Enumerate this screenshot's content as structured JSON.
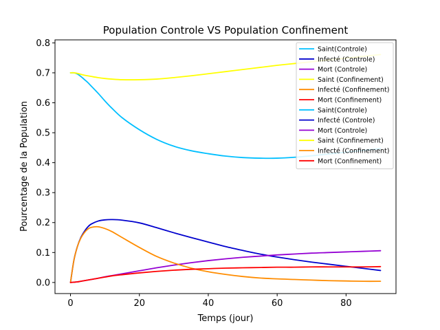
{
  "chart_data": {
    "type": "line",
    "title": "Population Controle VS Population Confinement",
    "xlabel": "Temps (jour)",
    "ylabel": "Pourcentage de la Population",
    "xlim": [
      -4.5,
      94.5
    ],
    "ylim": [
      -0.037,
      0.81
    ],
    "xticks": [
      0,
      20,
      40,
      60,
      80
    ],
    "yticks": [
      0.0,
      0.1,
      0.2,
      0.3,
      0.4,
      0.5,
      0.6,
      0.7,
      0.8
    ],
    "xtick_labels": [
      "0",
      "20",
      "40",
      "60",
      "80"
    ],
    "ytick_labels": [
      "0.0",
      "0.1",
      "0.2",
      "0.3",
      "0.4",
      "0.5",
      "0.6",
      "0.7",
      "0.8"
    ],
    "grid": false,
    "legend_position": "top-right",
    "x": [
      0,
      1,
      2,
      3,
      4,
      5,
      6,
      8,
      10,
      12,
      15,
      20,
      25,
      30,
      35,
      40,
      45,
      50,
      55,
      60,
      65,
      70,
      75,
      80,
      85,
      90
    ],
    "series": [
      {
        "name": "Saint(Controle)",
        "color": "#00bfff",
        "values": [
          0.7,
          0.7,
          0.696,
          0.688,
          0.678,
          0.668,
          0.656,
          0.632,
          0.606,
          0.582,
          0.55,
          0.51,
          0.478,
          0.455,
          0.44,
          0.43,
          0.422,
          0.417,
          0.415,
          0.415,
          0.418,
          0.423,
          0.429,
          0.435,
          0.441,
          0.447
        ]
      },
      {
        "name": "Infecté (Controle)",
        "color": "#0000cd",
        "values": [
          0.0,
          0.075,
          0.12,
          0.15,
          0.17,
          0.185,
          0.195,
          0.205,
          0.209,
          0.21,
          0.208,
          0.199,
          0.183,
          0.166,
          0.15,
          0.135,
          0.12,
          0.107,
          0.095,
          0.085,
          0.076,
          0.068,
          0.061,
          0.054,
          0.047,
          0.04
        ]
      },
      {
        "name": "Mort (Controle)",
        "color": "#9400d3",
        "values": [
          0.0,
          0.001,
          0.002,
          0.004,
          0.006,
          0.008,
          0.01,
          0.014,
          0.019,
          0.023,
          0.029,
          0.039,
          0.049,
          0.058,
          0.066,
          0.073,
          0.079,
          0.084,
          0.088,
          0.092,
          0.095,
          0.098,
          0.1,
          0.102,
          0.104,
          0.106
        ]
      },
      {
        "name": "Saint (Confinement)",
        "color": "#ffff00",
        "values": [
          0.7,
          0.7,
          0.698,
          0.695,
          0.692,
          0.69,
          0.688,
          0.684,
          0.681,
          0.679,
          0.677,
          0.677,
          0.679,
          0.684,
          0.69,
          0.697,
          0.704,
          0.711,
          0.718,
          0.725,
          0.731,
          0.737,
          0.743,
          0.749,
          0.755,
          0.761
        ]
      },
      {
        "name": "Infecté (Confinement)",
        "color": "#ff8c00",
        "values": [
          0.0,
          0.075,
          0.12,
          0.148,
          0.166,
          0.178,
          0.184,
          0.186,
          0.18,
          0.17,
          0.15,
          0.117,
          0.087,
          0.065,
          0.048,
          0.036,
          0.027,
          0.02,
          0.015,
          0.012,
          0.01,
          0.008,
          0.006,
          0.005,
          0.004,
          0.004
        ]
      },
      {
        "name": "Mort (Confinement)",
        "color": "#ff0000",
        "values": [
          0.0,
          0.001,
          0.002,
          0.004,
          0.006,
          0.008,
          0.01,
          0.014,
          0.018,
          0.022,
          0.026,
          0.032,
          0.037,
          0.041,
          0.044,
          0.046,
          0.048,
          0.049,
          0.05,
          0.051,
          0.051,
          0.052,
          0.052,
          0.052,
          0.052,
          0.053
        ]
      }
    ],
    "legend": [
      {
        "label": "Saint(Controle)",
        "color": "#00bfff"
      },
      {
        "label": "Infecté (Controle)",
        "color": "#0000cd"
      },
      {
        "label": "Mort (Controle)",
        "color": "#9400d3"
      },
      {
        "label": "Saint (Confinement)",
        "color": "#ffff00"
      },
      {
        "label": "Infecté (Confinement)",
        "color": "#ff8c00"
      },
      {
        "label": "Mort (Confinement)",
        "color": "#ff0000"
      },
      {
        "label": "Saint(Controle)",
        "color": "#00bfff"
      },
      {
        "label": "Infecté (Controle)",
        "color": "#0000cd"
      },
      {
        "label": "Mort (Controle)",
        "color": "#9400d3"
      },
      {
        "label": "Saint (Confinement)",
        "color": "#ffff00"
      },
      {
        "label": "Infecté (Confinement)",
        "color": "#ff8c00"
      },
      {
        "label": "Mort (Confinement)",
        "color": "#ff0000"
      }
    ]
  }
}
